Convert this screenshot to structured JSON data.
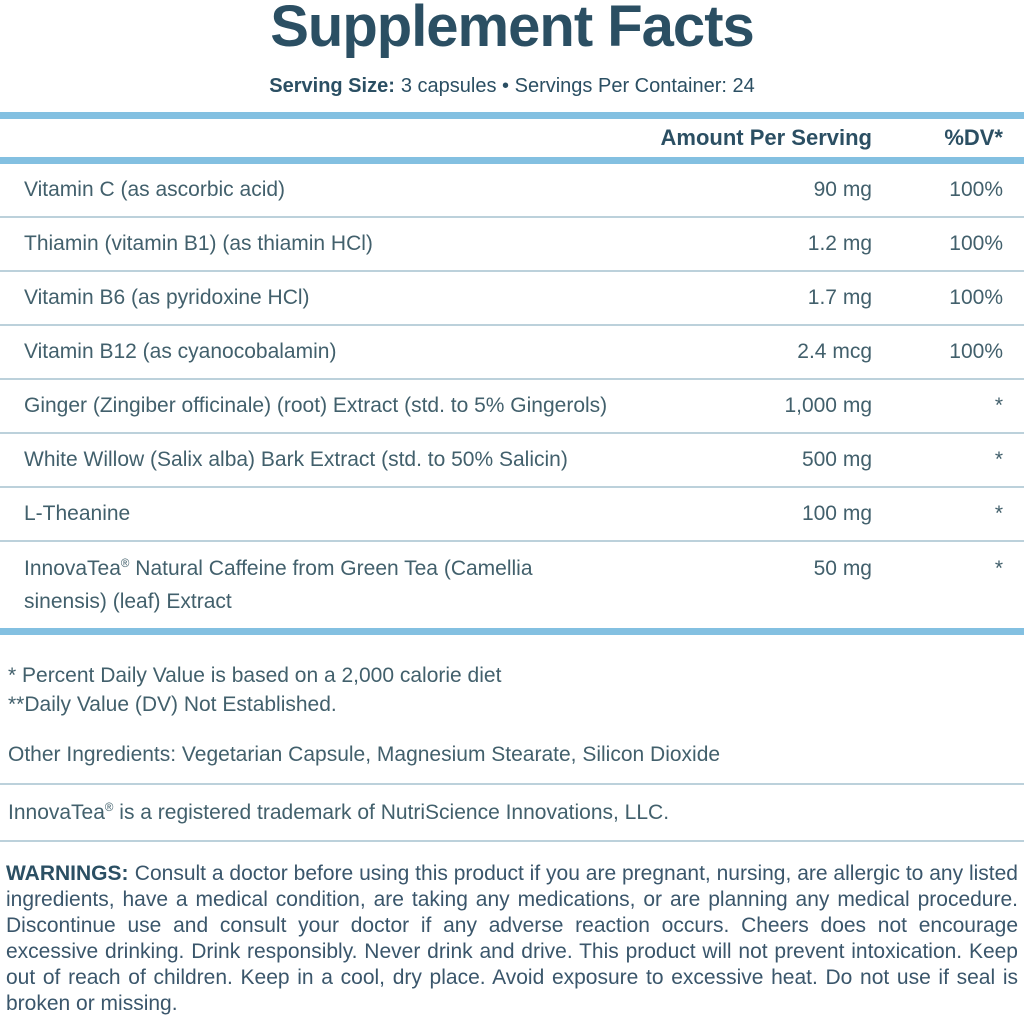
{
  "title": "Supplement Facts",
  "serving": {
    "label": "Serving Size:",
    "value": "3 capsules • Servings Per Container: 24"
  },
  "table": {
    "headers": {
      "amount": "Amount Per Serving",
      "dv": "%DV*"
    },
    "rows": [
      {
        "name": "Vitamin C (as ascorbic acid)",
        "amount": "90 mg",
        "dv": "100%"
      },
      {
        "name": "Thiamin (vitamin B1) (as thiamin HCl)",
        "amount": "1.2 mg",
        "dv": "100%"
      },
      {
        "name": "Vitamin B6 (as pyridoxine HCl)",
        "amount": "1.7 mg",
        "dv": "100%"
      },
      {
        "name": "Vitamin B12 (as cyanocobalamin)",
        "amount": "2.4 mcg",
        "dv": "100%"
      },
      {
        "name": "Ginger (Zingiber officinale) (root) Extract (std. to 5% Gingerols)",
        "amount": "1,000 mg",
        "dv": "*"
      },
      {
        "name": "White Willow (Salix alba) Bark Extract (std. to 50% Salicin)",
        "amount": "500 mg",
        "dv": "*"
      },
      {
        "name": "L-Theanine",
        "amount": "100 mg",
        "dv": "*"
      },
      {
        "name": "InnovaTea® Natural Caffeine from Green Tea (Camellia\nsinensis) (leaf) Extract",
        "amount": "50 mg",
        "dv": "*"
      }
    ]
  },
  "footnotes": {
    "dv_note": "* Percent Daily Value is based on a 2,000 calorie diet",
    "not_established_note": "**Daily Value (DV) Not Established.",
    "other_ingredients": "Other Ingredients: Vegetarian Capsule, Magnesium Stearate, Silicon Dioxide",
    "trademark": "InnovaTea® is a registered trademark of NutriScience Innovations, LLC."
  },
  "warnings": {
    "label": "WARNINGS:",
    "text": "Consult a doctor before using this product if you are pregnant, nursing, are allergic to any listed ingredients, have a medical condition, are taking any medications, or are planning any medical procedure. Discontinue use and consult your doctor if any adverse reaction occurs. Cheers does not encourage excessive drinking. Drink responsibly. Never drink and drive. This product will not prevent intoxication. Keep out of reach of children. Keep in a cool, dry place. Avoid exposure to excessive heat. Do not use if seal is broken or missing."
  },
  "colors": {
    "accent_blue": "#83C0E1",
    "divider": "#BCD1DB",
    "heading_dark": "#2B4F63",
    "text_body": "#42606C",
    "warnings_text": "#3A566B"
  }
}
